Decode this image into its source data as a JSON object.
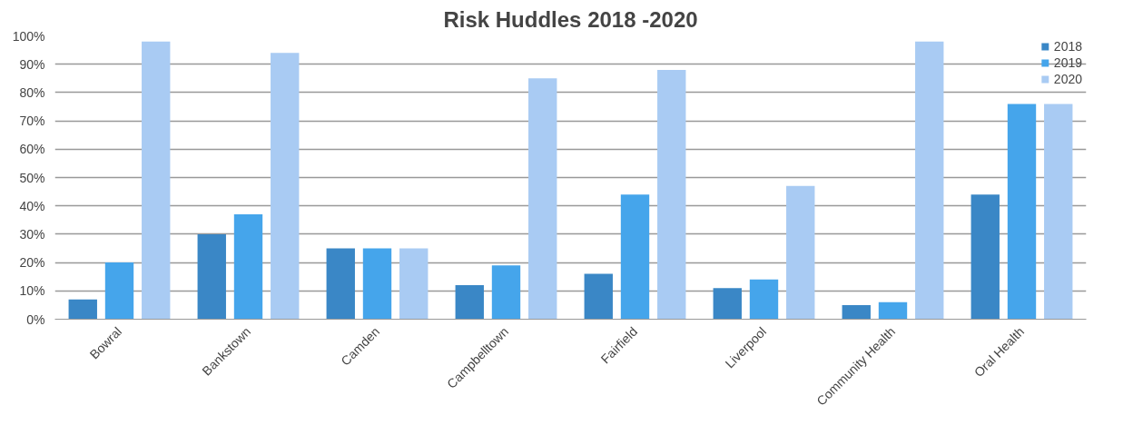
{
  "chart_data": {
    "type": "bar",
    "title": "Risk Huddles 2018 -2020",
    "categories": [
      "Bowral",
      "Bankstown",
      "Camden",
      "Campbelltown",
      "Fairfield",
      "Liverpool",
      "Community Health",
      "Oral Health"
    ],
    "series": [
      {
        "name": "2018",
        "color": "#3a87c6",
        "values": [
          7,
          30,
          25,
          12,
          16,
          11,
          5,
          44
        ]
      },
      {
        "name": "2019",
        "color": "#45a5eb",
        "values": [
          20,
          37,
          25,
          19,
          44,
          14,
          6,
          76
        ]
      },
      {
        "name": "2020",
        "color": "#a9cbf3",
        "values": [
          98,
          94,
          25,
          85,
          88,
          47,
          98,
          76
        ]
      }
    ],
    "ylim": [
      0,
      100
    ],
    "yticks": [
      {
        "value": 0,
        "label": "0%"
      },
      {
        "value": 10,
        "label": "10%"
      },
      {
        "value": 20,
        "label": "20%"
      },
      {
        "value": 30,
        "label": "30%"
      },
      {
        "value": 40,
        "label": "40%"
      },
      {
        "value": 50,
        "label": "50%"
      },
      {
        "value": 60,
        "label": "60%"
      },
      {
        "value": 70,
        "label": "70%"
      },
      {
        "value": 80,
        "label": "80%"
      },
      {
        "value": 90,
        "label": "90%"
      },
      {
        "value": 100,
        "label": "100%"
      }
    ],
    "grid": "y",
    "legend": "top right"
  }
}
